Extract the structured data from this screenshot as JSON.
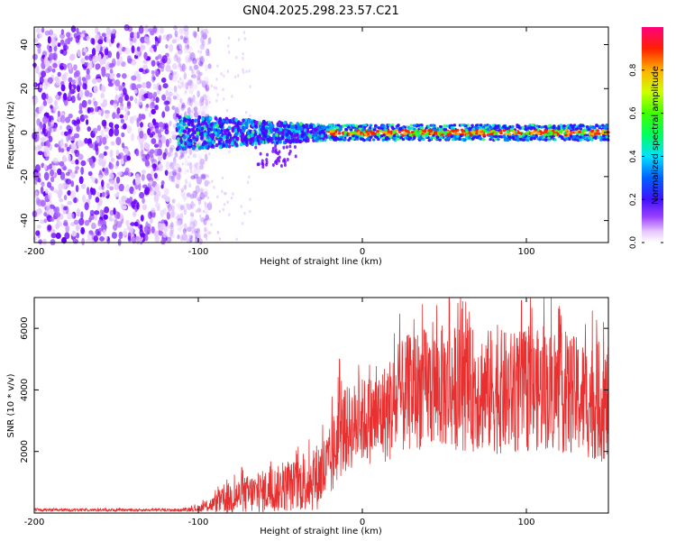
{
  "title": "GN04.2025.298.23.57.C21",
  "colors": {
    "snr_line": "#e83030",
    "axis": "#000000",
    "purple": "#7a00ff",
    "green": "#00e000",
    "red": "#ff0000"
  },
  "chart_data": [
    {
      "type": "heatmap",
      "title": "GN04.2025.298.23.57.C21",
      "xlabel": "Height of straight line (km)",
      "ylabel": "Frequency (Hz)",
      "xlim": [
        -200,
        150
      ],
      "ylim": [
        -50,
        48
      ],
      "xticks": [
        -200,
        -100,
        0,
        100
      ],
      "xtick_labels": [
        "-200",
        "-100",
        "0",
        "100"
      ],
      "yticks": [
        -40,
        -20,
        0,
        20,
        40
      ],
      "ytick_labels": [
        "-40",
        "-20",
        "0",
        "20",
        "40"
      ],
      "colorbar": {
        "label": "Normalized spectral amplitude",
        "range": [
          0,
          1
        ],
        "ticks": [
          0,
          0.2,
          0.4,
          0.6,
          0.8
        ],
        "tick_labels": [
          "0.0",
          "0.2",
          "0.4",
          "0.6",
          "0.8"
        ]
      },
      "regions": [
        {
          "x_range": [
            -200,
            -113
          ],
          "freq_range": [
            -50,
            48
          ],
          "amplitude": "low-noise"
        },
        {
          "x_range": [
            -113,
            -22
          ],
          "freq_range": [
            -8,
            8
          ],
          "amplitude": 0.45
        },
        {
          "x_range": [
            -22,
            150
          ],
          "freq_range": [
            -3,
            3
          ],
          "amplitude": 0.9
        }
      ]
    },
    {
      "type": "line",
      "xlabel": "Height of straight line (km)",
      "ylabel": "SNR (10 * v/v)",
      "xlim": [
        -200,
        150
      ],
      "ylim": [
        0,
        7000
      ],
      "xticks": [
        -200,
        -100,
        0,
        100
      ],
      "xtick_labels": [
        "-200",
        "-100",
        "0",
        "100"
      ],
      "yticks": [
        2000,
        4000,
        6000
      ],
      "ytick_labels": [
        "2000",
        "4000",
        "6000"
      ],
      "envelope": {
        "x": [
          -200,
          -110,
          -100,
          -90,
          -80,
          -70,
          -60,
          -50,
          -40,
          -30,
          -20,
          -15,
          -10,
          0,
          10,
          20,
          30,
          50,
          70,
          90,
          110,
          130,
          150
        ],
        "mean": [
          100,
          100,
          150,
          300,
          500,
          600,
          700,
          800,
          900,
          1100,
          1500,
          2400,
          2700,
          3000,
          3100,
          3500,
          4000,
          4100,
          4000,
          3900,
          4000,
          3800,
          3500
        ],
        "spread": [
          60,
          60,
          150,
          400,
          800,
          900,
          1000,
          1100,
          1200,
          1500,
          1800,
          2000,
          2000,
          2000,
          2200,
          2600,
          2800,
          2900,
          2900,
          2900,
          2800,
          2800,
          2700
        ]
      },
      "peaks": [
        {
          "x": 53,
          "y": 7000
        },
        {
          "x": 97,
          "y": 6900
        },
        {
          "x": -14,
          "y": 5000
        }
      ]
    }
  ]
}
